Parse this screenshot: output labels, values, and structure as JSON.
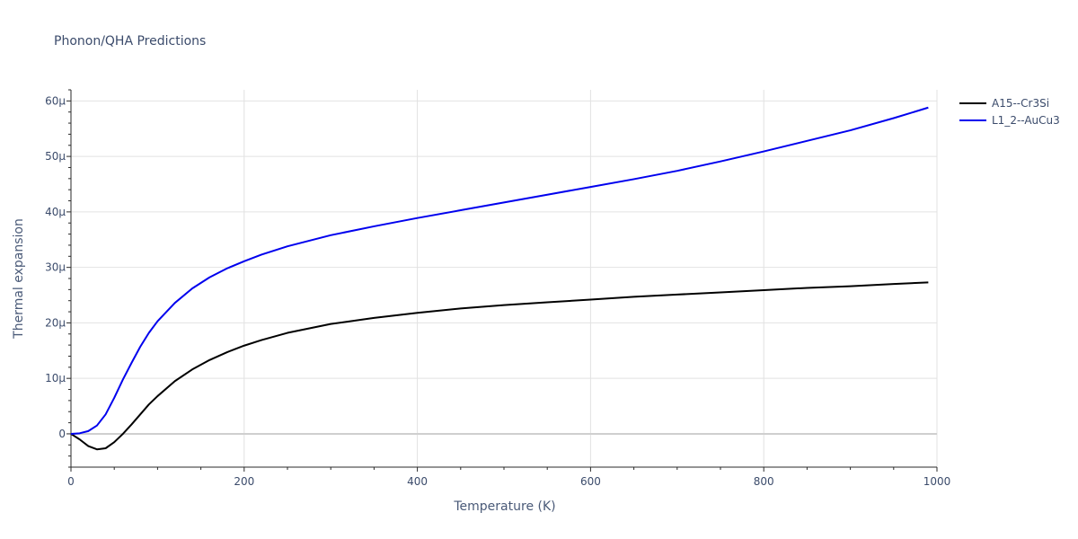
{
  "chart_data": {
    "type": "line",
    "title": "Phonon/QHA Predictions",
    "xlabel": "Temperature (K)",
    "ylabel": "Thermal expansion",
    "xlim": [
      0,
      1000
    ],
    "ylim": [
      -6,
      62
    ],
    "x_ticks": [
      {
        "value": 0,
        "label": "0"
      },
      {
        "value": 200,
        "label": "200"
      },
      {
        "value": 400,
        "label": "400"
      },
      {
        "value": 600,
        "label": "600"
      },
      {
        "value": 800,
        "label": "800"
      },
      {
        "value": 1000,
        "label": "1000"
      }
    ],
    "y_ticks": [
      {
        "value": 0,
        "label": "0"
      },
      {
        "value": 10,
        "label": "10μ"
      },
      {
        "value": 20,
        "label": "20μ"
      },
      {
        "value": 30,
        "label": "30μ"
      },
      {
        "value": 40,
        "label": "40μ"
      },
      {
        "value": 50,
        "label": "50μ"
      },
      {
        "value": 60,
        "label": "60μ"
      }
    ],
    "grid": true,
    "legend_position": "top-right",
    "series": [
      {
        "name": "A15--Cr3Si",
        "color": "#000000",
        "x": [
          0,
          10,
          20,
          30,
          40,
          50,
          60,
          70,
          80,
          90,
          100,
          120,
          140,
          160,
          180,
          200,
          220,
          250,
          300,
          350,
          400,
          450,
          500,
          550,
          600,
          650,
          700,
          750,
          800,
          850,
          900,
          950,
          990
        ],
        "y": [
          0,
          -1.0,
          -2.2,
          -2.8,
          -2.6,
          -1.5,
          0.0,
          1.7,
          3.5,
          5.3,
          6.8,
          9.5,
          11.6,
          13.3,
          14.7,
          15.9,
          16.9,
          18.2,
          19.8,
          20.9,
          21.8,
          22.6,
          23.2,
          23.7,
          24.2,
          24.7,
          25.1,
          25.5,
          25.9,
          26.3,
          26.6,
          27.0,
          27.3
        ]
      },
      {
        "name": "L1_2--AuCu3",
        "color": "#0000ee",
        "x": [
          0,
          10,
          20,
          30,
          40,
          50,
          60,
          70,
          80,
          90,
          100,
          120,
          140,
          160,
          180,
          200,
          220,
          250,
          300,
          350,
          400,
          450,
          500,
          550,
          600,
          650,
          700,
          750,
          800,
          850,
          900,
          950,
          990
        ],
        "y": [
          0,
          0.1,
          0.5,
          1.5,
          3.5,
          6.5,
          9.8,
          12.8,
          15.7,
          18.2,
          20.3,
          23.6,
          26.2,
          28.2,
          29.8,
          31.1,
          32.3,
          33.8,
          35.8,
          37.4,
          38.9,
          40.3,
          41.7,
          43.1,
          44.5,
          45.9,
          47.4,
          49.1,
          50.9,
          52.8,
          54.7,
          56.9,
          58.8
        ]
      }
    ]
  }
}
